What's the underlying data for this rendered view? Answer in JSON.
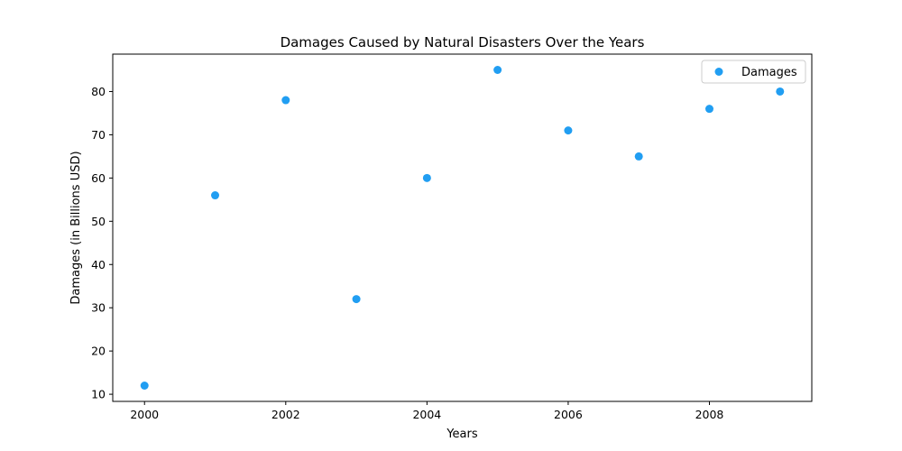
{
  "chart_data": {
    "type": "scatter",
    "title": "Damages Caused by Natural Disasters Over the Years",
    "xlabel": "Years",
    "ylabel": "Damages (in Billions USD)",
    "xlim": [
      1999.55,
      2009.45
    ],
    "ylim": [
      8.35,
      88.65
    ],
    "xticks": [
      2000,
      2002,
      2004,
      2006,
      2008
    ],
    "yticks": [
      10,
      20,
      30,
      40,
      50,
      60,
      70,
      80
    ],
    "grid": false,
    "legend_position": "top-right",
    "series": [
      {
        "name": "Damages",
        "color": "#219ef2",
        "x": [
          2000,
          2001,
          2002,
          2003,
          2004,
          2005,
          2006,
          2007,
          2008,
          2009
        ],
        "y": [
          12,
          56,
          78,
          32,
          60,
          85,
          71,
          65,
          76,
          80
        ]
      }
    ]
  }
}
